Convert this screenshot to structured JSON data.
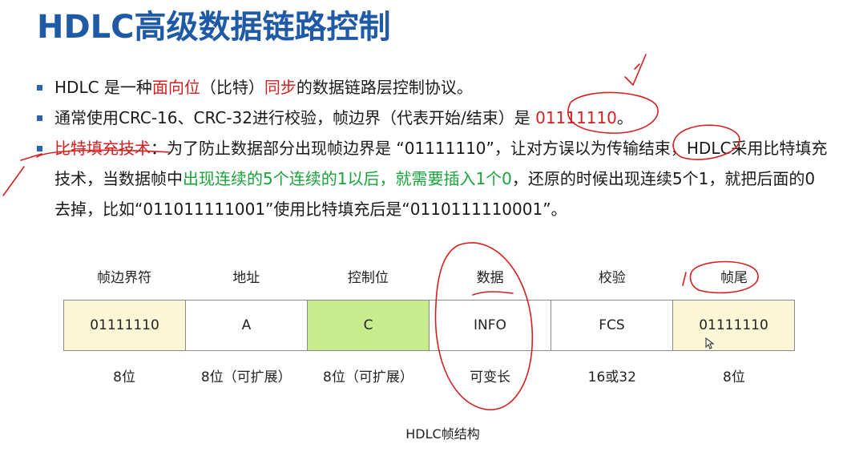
{
  "title": "HDLC高级数据链路控制",
  "bullets": {
    "b1": {
      "p1": "HDLC 是一种",
      "p2": "面向位",
      "p3": "（比特）",
      "p4": "同步",
      "p5": "的数据链路层控制协议。"
    },
    "b2": {
      "p1": "通常使用CRC-16、CRC-32进行校验，帧边界（代表开始/结束）是 ",
      "p2": "01111110",
      "p3": "。"
    },
    "b3": {
      "p1": "比特填充技术",
      "p2": "：为了防止数据部分出现帧边界是 “01111110”，让对方误以为传输结束，HDLC采用比特填充技术，当数据帧中",
      "p3": "出现连续的5个连续的1以后，就需要插入1个0",
      "p4": "，还原的时候出现连续5个1，就把后面的0去掉，比如“011011111001”使用比特填充后是“0110111110001”。"
    }
  },
  "frame": {
    "headers": [
      "帧边界符",
      "地址",
      "控制位",
      "数据",
      "校验",
      "帧尾"
    ],
    "cells": [
      "01111110",
      "A",
      "C",
      "INFO",
      "FCS",
      "01111110"
    ],
    "sizes": [
      "8位",
      "8位（可扩展）",
      "8位（可扩展）",
      "可变长",
      "16或32",
      "8位"
    ],
    "caption": "HDLC帧结构"
  },
  "colors": {
    "title": "#1f5aa6",
    "highlight_red": "#d42020",
    "highlight_green": "#19a33a",
    "cell_yellow": "#fbf7d6",
    "cell_green": "#c6ec8e",
    "ink_red": "#d42020"
  }
}
